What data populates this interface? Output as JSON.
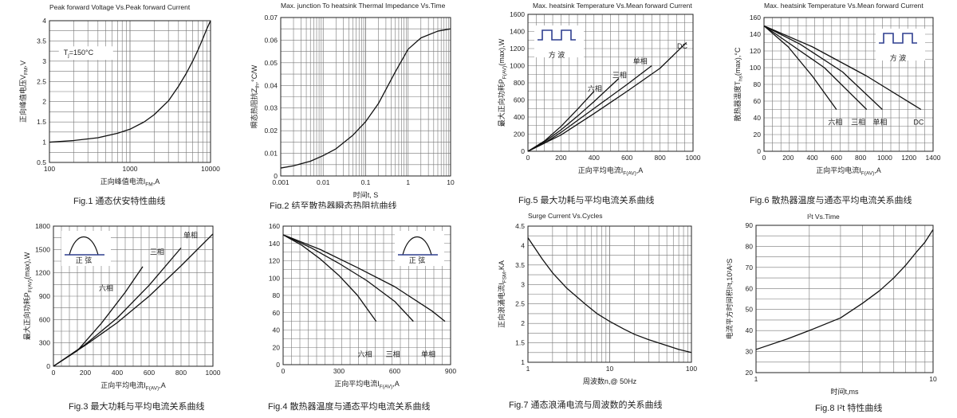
{
  "charts": [
    {
      "id": "fig1",
      "chart_data": {
        "type": "line",
        "title": "Peak forward Voltage Vs.Peak forward Current",
        "caption": "Fig.1 通态伏安特性曲线",
        "xlabel": "正向峰值电流I",
        "xlabel_sub": "FM",
        "xlabel_tail": ",A",
        "ylabel": "正向峰值电压V",
        "ylabel_sub": "FM",
        "ylabel_tail": ",V",
        "x_scale": "log",
        "xlim": [
          100,
          10000
        ],
        "ylim": [
          0.5,
          4
        ],
        "x_ticks": [
          100,
          1000,
          10000
        ],
        "y_ticks": [
          0.5,
          1,
          1.5,
          2,
          2.5,
          3,
          3.5,
          4
        ],
        "grid": true,
        "annotations": [
          {
            "text": "T",
            "sub": "j",
            "tail": "=150°C",
            "x": 150,
            "y": 3.15,
            "boxed": true
          }
        ],
        "series": [
          {
            "x": [
              100,
              200,
              400,
              700,
              1000,
              1500,
              2000,
              3000,
              4000,
              5000,
              6000,
              7000,
              8000,
              9000,
              10000
            ],
            "y": [
              1.0,
              1.04,
              1.11,
              1.22,
              1.32,
              1.5,
              1.68,
              2.02,
              2.38,
              2.7,
              3.0,
              3.28,
              3.55,
              3.8,
              4.0
            ]
          }
        ]
      }
    },
    {
      "id": "fig2",
      "chart_data": {
        "type": "line",
        "title": "Max. junction To heatsink Thermal Impedance Vs.Time",
        "caption": "Fig.2 结至散热器瞬态热阻抗曲线",
        "xlabel": "时间t, S",
        "ylabel": "瞬态热阻抗Z",
        "ylabel_sub": "th",
        "ylabel_tail": ",°C/W",
        "x_scale": "log",
        "xlim": [
          0.001,
          10
        ],
        "ylim": [
          0,
          0.07
        ],
        "x_ticks": [
          0.001,
          0.01,
          0.1,
          1,
          10
        ],
        "y_ticks": [
          0,
          0.01,
          0.02,
          0.03,
          0.04,
          0.05,
          0.06,
          0.07
        ],
        "grid": true,
        "series": [
          {
            "x": [
              0.001,
              0.002,
              0.005,
              0.01,
              0.02,
              0.05,
              0.1,
              0.2,
              0.5,
              1,
              2,
              5,
              10
            ],
            "y": [
              0.0035,
              0.0045,
              0.0065,
              0.009,
              0.012,
              0.018,
              0.024,
              0.032,
              0.046,
              0.056,
              0.061,
              0.064,
              0.065
            ]
          }
        ]
      }
    },
    {
      "id": "fig5",
      "chart_data": {
        "type": "line",
        "title": "Max. heatsink Temperature Vs.Mean forward Current",
        "caption": "Fig.5 最大功耗与平均电流关系曲线",
        "xlabel": "正向平均电流I",
        "xlabel_sub": "F(AV)",
        "xlabel_tail": ",A",
        "ylabel": "最大正向功耗P",
        "ylabel_sub": "F(AV)",
        "ylabel_tail": "(max),W",
        "xlim": [
          0,
          1000
        ],
        "ylim": [
          0,
          1600
        ],
        "x_ticks": [
          0,
          200,
          400,
          600,
          800,
          1000
        ],
        "y_ticks": [
          0,
          200,
          400,
          600,
          800,
          1000,
          1200,
          1400,
          1600
        ],
        "grid": true,
        "inset": {
          "kind": "square",
          "label": "方 波"
        },
        "series": [
          {
            "name": "六相",
            "x": [
              0,
              100,
              200,
              300,
              400
            ],
            "y": [
              0,
              120,
              290,
              490,
              700
            ],
            "label_x": 405,
            "label_y": 730
          },
          {
            "name": "三相",
            "x": [
              0,
              100,
              200,
              300,
              400,
              550
            ],
            "y": [
              0,
              110,
              250,
              410,
              580,
              850
            ],
            "label_x": 555,
            "label_y": 890
          },
          {
            "name": "单相",
            "x": [
              0,
              100,
              200,
              400,
              600,
              750
            ],
            "y": [
              0,
              95,
              220,
              500,
              780,
              1000
            ],
            "label_x": 680,
            "label_y": 1050
          },
          {
            "name": "DC",
            "x": [
              0,
              200,
              400,
              600,
              800,
              960
            ],
            "y": [
              0,
              190,
              440,
              700,
              970,
              1270
            ],
            "label_x": 935,
            "label_y": 1230
          }
        ]
      }
    },
    {
      "id": "fig6",
      "chart_data": {
        "type": "line",
        "title": "Max. heatsink Temperature Vs.Mean forward Current",
        "caption": "Fig.6 散热器温度与通态平均电流关系曲线",
        "xlabel": "正向平均电流I",
        "xlabel_sub": "F(AV)",
        "xlabel_tail": ",A",
        "ylabel": "散热器温度T",
        "ylabel_sub": "hs",
        "ylabel_tail": "(max),°C",
        "xlim": [
          0,
          1400
        ],
        "ylim": [
          0,
          160
        ],
        "x_ticks": [
          0,
          200,
          400,
          600,
          800,
          1000,
          1200,
          1400
        ],
        "y_ticks": [
          0,
          20,
          40,
          60,
          80,
          100,
          120,
          140,
          160
        ],
        "grid": true,
        "inset": {
          "kind": "square",
          "label": "方 波"
        },
        "series": [
          {
            "name": "六相",
            "x": [
              0,
              200,
              400,
              600
            ],
            "y": [
              150,
              125,
              90,
              50
            ],
            "label_x": 590,
            "label_y": 35
          },
          {
            "name": "三相",
            "x": [
              0,
              200,
              500,
              850
            ],
            "y": [
              150,
              130,
              100,
              50
            ],
            "label_x": 780,
            "label_y": 35
          },
          {
            "name": "单相",
            "x": [
              0,
              300,
              650,
              980
            ],
            "y": [
              150,
              128,
              95,
              50
            ],
            "label_x": 960,
            "label_y": 35
          },
          {
            "name": "DC",
            "x": [
              0,
              400,
              850,
              1300
            ],
            "y": [
              150,
              125,
              90,
              50
            ],
            "label_x": 1280,
            "label_y": 35
          }
        ]
      }
    },
    {
      "id": "fig3",
      "chart_data": {
        "type": "line",
        "title": "",
        "caption": "Fig.3 最大功耗与平均电流关系曲线",
        "xlabel": "正向平均电流I",
        "xlabel_sub": "F(AV)",
        "xlabel_tail": ",A",
        "ylabel": "最大正向功耗P",
        "ylabel_sub": "F(AV)",
        "ylabel_tail": "(max),W",
        "xlim": [
          0,
          1000
        ],
        "ylim": [
          0,
          1800
        ],
        "x_ticks": [
          0,
          200,
          400,
          600,
          800,
          1000
        ],
        "y_ticks": [
          0,
          300,
          600,
          900,
          1200,
          1500,
          1800
        ],
        "grid": true,
        "inset": {
          "kind": "sine",
          "label": "正 弦"
        },
        "series": [
          {
            "name": "六相",
            "x": [
              0,
              150,
              300,
              450,
              560
            ],
            "y": [
              0,
              200,
              550,
              950,
              1280
            ],
            "label_x": 330,
            "label_y": 1000
          },
          {
            "name": "三相",
            "x": [
              0,
              200,
              400,
              600,
              800
            ],
            "y": [
              0,
              280,
              620,
              1040,
              1520
            ],
            "label_x": 650,
            "label_y": 1470
          },
          {
            "name": "单相",
            "x": [
              0,
              200,
              400,
              600,
              800,
              1000
            ],
            "y": [
              0,
              270,
              560,
              900,
              1290,
              1700
            ],
            "label_x": 860,
            "label_y": 1680
          }
        ]
      }
    },
    {
      "id": "fig4",
      "chart_data": {
        "type": "line",
        "title": "",
        "caption": "Fig.4 散热器温度与通态平均电流关系曲线",
        "xlabel": "正向平均电流I",
        "xlabel_sub": "F(AV)",
        "xlabel_tail": ",A",
        "ylabel": "",
        "xlim": [
          0,
          900
        ],
        "ylim": [
          0,
          160
        ],
        "x_ticks": [
          0,
          300,
          600,
          900
        ],
        "y_ticks": [
          0,
          20,
          40,
          60,
          80,
          100,
          120,
          140,
          160
        ],
        "grid": true,
        "inset": {
          "kind": "sine",
          "label": "正 弦"
        },
        "series": [
          {
            "name": "六相",
            "x": [
              0,
              100,
              200,
              300,
              400,
              500
            ],
            "y": [
              150,
              138,
              122,
              103,
              80,
              50
            ],
            "label_x": 440,
            "label_y": 12
          },
          {
            "name": "三相",
            "x": [
              0,
              150,
              300,
              450,
              600,
              700
            ],
            "y": [
              150,
              135,
              117,
              97,
              73,
              50
            ],
            "label_x": 590,
            "label_y": 12
          },
          {
            "name": "单相",
            "x": [
              0,
              200,
              400,
              600,
              800,
              870
            ],
            "y": [
              150,
              133,
              112,
              90,
              62,
              50
            ],
            "label_x": 780,
            "label_y": 12
          }
        ]
      }
    },
    {
      "id": "fig7",
      "chart_data": {
        "type": "line",
        "title": "Surge Current Vs.Cycles",
        "caption": "Fig.7 通态浪涌电流与周波数的关系曲线",
        "xlabel": "周波数n,@ 50Hz",
        "ylabel": "正向浪涌电流I",
        "ylabel_sub": "FSM",
        "ylabel_tail": ",KA",
        "x_scale": "log",
        "xlim": [
          1,
          100
        ],
        "ylim": [
          1,
          4.5
        ],
        "x_ticks": [
          1,
          10,
          100
        ],
        "y_ticks": [
          1,
          1.5,
          2,
          2.5,
          3,
          3.5,
          4,
          4.5
        ],
        "grid": true,
        "series": [
          {
            "x": [
              1,
              1.5,
              2,
              3,
              5,
              7,
              10,
              15,
              20,
              30,
              50,
              70,
              100
            ],
            "y": [
              4.2,
              3.65,
              3.3,
              2.9,
              2.5,
              2.25,
              2.05,
              1.85,
              1.72,
              1.58,
              1.43,
              1.33,
              1.25
            ]
          }
        ]
      }
    },
    {
      "id": "fig8",
      "chart_data": {
        "type": "line",
        "title": "I²t Vs.Time",
        "caption": "Fig.8 I²t 特性曲线",
        "xlabel": "时间t,ms",
        "ylabel": "电流平方时间积I²t,10²A²S",
        "x_scale": "log",
        "xlim": [
          1,
          10
        ],
        "ylim": [
          20,
          90
        ],
        "x_ticks": [
          1,
          10
        ],
        "y_ticks": [
          20,
          30,
          40,
          50,
          60,
          70,
          80,
          90
        ],
        "grid": true,
        "series": [
          {
            "x": [
              1,
              1.5,
              2,
              3,
              4,
              5,
              6,
              7,
              8,
              9,
              10
            ],
            "y": [
              31,
              36,
              40,
              46,
              53,
              59,
              65,
              71,
              77,
              82,
              88
            ]
          }
        ]
      }
    }
  ]
}
